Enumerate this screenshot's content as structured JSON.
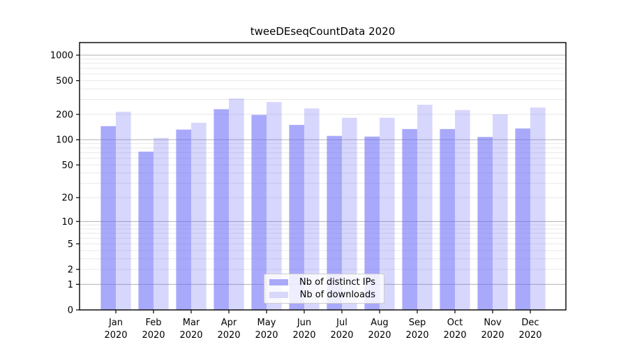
{
  "chart_data": {
    "type": "bar",
    "title": "tweeDEseqCountData 2020",
    "categories": [
      "Jan",
      "Feb",
      "Mar",
      "Apr",
      "May",
      "Jun",
      "Jul",
      "Aug",
      "Sep",
      "Oct",
      "Nov",
      "Dec"
    ],
    "x_year_label": "2020",
    "series": [
      {
        "name": "Nb of distinct IPs",
        "values": [
          145,
          72,
          132,
          230,
          197,
          150,
          111,
          109,
          134,
          134,
          108,
          136
        ],
        "bar_color": "rgba(106,106,248,0.58)",
        "legend_color": "#a9a9fa"
      },
      {
        "name": "Nb of downloads",
        "values": [
          215,
          105,
          159,
          308,
          280,
          235,
          182,
          182,
          260,
          225,
          200,
          241
        ],
        "bar_color": "rgba(106,106,248,0.27)",
        "legend_color": "#d8d8fa"
      }
    ],
    "y_ticks": [
      0,
      1,
      2,
      5,
      10,
      20,
      50,
      100,
      200,
      500,
      1000
    ],
    "scale": "log1p",
    "ylim": [
      0,
      1400
    ],
    "grid": {
      "major_color": "#b0b0b0",
      "minor_color": "#e8e8e8"
    },
    "axis_color": "#000000",
    "legend_position": "bottom-center"
  }
}
